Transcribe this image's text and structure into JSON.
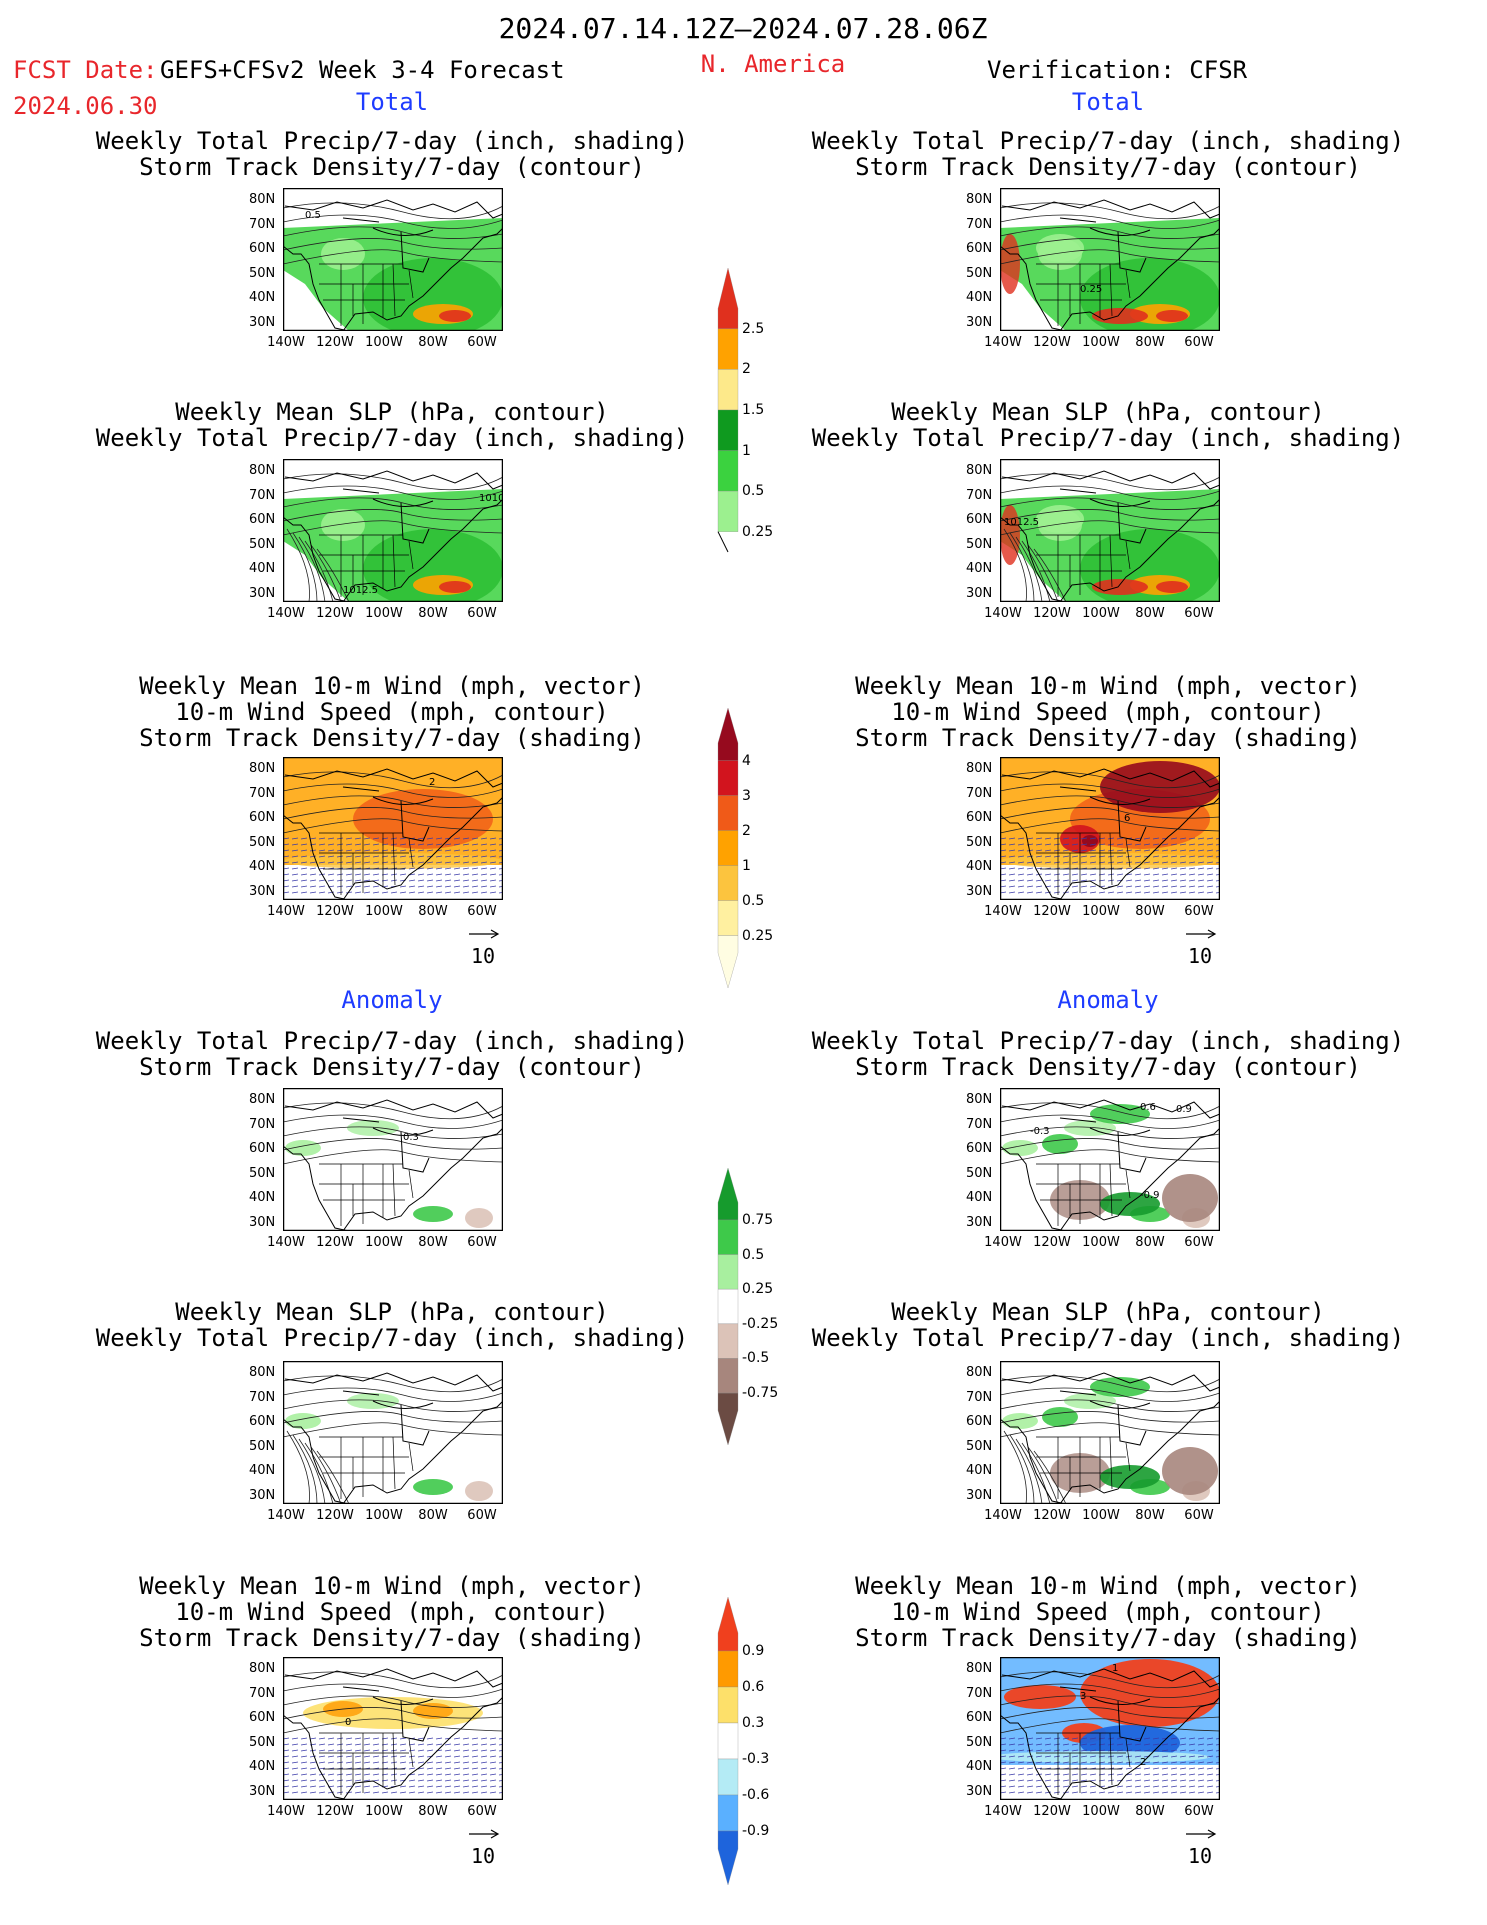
{
  "header": {
    "period": "2024.07.14.12Z–2024.07.28.06Z",
    "fcst_label": "FCST Date:",
    "fcst_model": "GEFS+CFSv2 Week 3-4 Forecast",
    "fcst_date": "2024.06.30",
    "region": "N. America",
    "verification": "Verification: CFSR"
  },
  "sections": {
    "total": "Total",
    "anomaly": "Anomaly"
  },
  "titles": {
    "precip_storm": [
      "Weekly Total Precip/7-day (inch, shading)",
      "Storm Track Density/7-day (contour)"
    ],
    "slp_precip": [
      "Weekly Mean SLP (hPa, contour)",
      "Weekly Total Precip/7-day (inch, shading)"
    ],
    "wind_storm": [
      "Weekly Mean 10-m Wind (mph, vector)",
      "10-m Wind Speed (mph, contour)",
      "Storm Track Density/7-day (shading)"
    ]
  },
  "axes": {
    "lat_labels": [
      "80N",
      "70N",
      "60N",
      "50N",
      "40N",
      "30N"
    ],
    "lon_labels": [
      "140W",
      "120W",
      "100W",
      "80W",
      "60W"
    ]
  },
  "ref_vector": "10",
  "map_annotations": {
    "fc_total_precip": "0.5",
    "fc_total_slp": "1012.5",
    "fc_total_slp_b": "1010",
    "fc_total_wind": "2",
    "ob_total_precip": "0.25",
    "ob_total_slp": "1012.5",
    "ob_total_wind": "6",
    "fc_anom_precip": "0.3",
    "ob_anom_precip_a": "0.6",
    "ob_anom_precip_b": "0.9",
    "ob_anom_precip_c": "-0.3",
    "ob_anom_precip_d": "-0.9",
    "fc_anom_wind": "0",
    "ob_anom_wind_a": "1",
    "ob_anom_wind_b": "3",
    "ob_anom_wind_c": "2"
  },
  "colorbars": {
    "precip_total": {
      "labels": [
        "2.5",
        "2",
        "1.5",
        "1",
        "0.5",
        "0.25"
      ],
      "colors": [
        "#e0301e",
        "#ffa200",
        "#fde98a",
        "#0f9a1f",
        "#3bd23f",
        "#9cf08f"
      ]
    },
    "storm_total": {
      "labels": [
        "4",
        "3",
        "2",
        "1",
        "0.5",
        "0.25"
      ],
      "colors": [
        "#960a1e",
        "#d2141e",
        "#f05a18",
        "#ffa200",
        "#fcc43e",
        "#fff0a0",
        "#fffde2"
      ]
    },
    "precip_anom": {
      "labels": [
        "0.75",
        "0.5",
        "0.25",
        "-0.25",
        "-0.5",
        "-0.75"
      ],
      "colors": [
        "#169b2d",
        "#3ec94a",
        "#a8ef9f",
        "#ffffff",
        "#dcc3b8",
        "#a7867d",
        "#6b4b43"
      ]
    },
    "storm_anom": {
      "labels": [
        "0.9",
        "0.6",
        "0.3",
        "-0.3",
        "-0.6",
        "-0.9"
      ],
      "colors": [
        "#f0401e",
        "#ff9a00",
        "#fde06a",
        "#ffffff",
        "#b4ebf5",
        "#5ab0ff",
        "#1e64dc"
      ]
    }
  },
  "chart_data": [
    {
      "type": "heatmap",
      "title": "Weekly Total Precip/7-day (inch, shading) / Storm Track Density/7-day (contour)",
      "section": "Total",
      "source": "FCST",
      "levels": [
        0.25,
        0.5,
        1,
        1.5,
        2,
        2.5
      ]
    },
    {
      "type": "heatmap",
      "title": "Weekly Total Precip/7-day (inch, shading) / Storm Track Density/7-day (contour)",
      "section": "Total",
      "source": "Verification: CFSR",
      "levels": [
        0.25,
        0.5,
        1,
        1.5,
        2,
        2.5
      ]
    },
    {
      "type": "heatmap",
      "title": "Weekly Mean SLP (hPa, contour) / Weekly Total Precip/7-day (inch, shading)",
      "section": "Total",
      "source": "FCST",
      "levels": [
        0.25,
        0.5,
        1,
        1.5,
        2,
        2.5
      ]
    },
    {
      "type": "heatmap",
      "title": "Weekly Mean SLP (hPa, contour) / Weekly Total Precip/7-day (inch, shading)",
      "section": "Total",
      "source": "Verification: CFSR",
      "levels": [
        0.25,
        0.5,
        1,
        1.5,
        2,
        2.5
      ]
    },
    {
      "type": "heatmap",
      "title": "Weekly Mean 10-m Wind (mph, vector) / 10-m Wind Speed (mph, contour) / Storm Track Density/7-day (shading)",
      "section": "Total",
      "source": "FCST",
      "levels": [
        0.25,
        0.5,
        1,
        2,
        3,
        4
      ]
    },
    {
      "type": "heatmap",
      "title": "Weekly Mean 10-m Wind (mph, vector) / 10-m Wind Speed (mph, contour) / Storm Track Density/7-day (shading)",
      "section": "Total",
      "source": "Verification: CFSR",
      "levels": [
        0.25,
        0.5,
        1,
        2,
        3,
        4
      ]
    },
    {
      "type": "heatmap",
      "title": "Weekly Total Precip/7-day (inch, shading) / Storm Track Density/7-day (contour)",
      "section": "Anomaly",
      "source": "FCST",
      "levels": [
        -0.75,
        -0.5,
        -0.25,
        0.25,
        0.5,
        0.75
      ]
    },
    {
      "type": "heatmap",
      "title": "Weekly Total Precip/7-day (inch, shading) / Storm Track Density/7-day (contour)",
      "section": "Anomaly",
      "source": "Verification: CFSR",
      "levels": [
        -0.75,
        -0.5,
        -0.25,
        0.25,
        0.5,
        0.75
      ]
    },
    {
      "type": "heatmap",
      "title": "Weekly Mean SLP (hPa, contour) / Weekly Total Precip/7-day (inch, shading)",
      "section": "Anomaly",
      "source": "FCST",
      "levels": [
        -0.75,
        -0.5,
        -0.25,
        0.25,
        0.5,
        0.75
      ]
    },
    {
      "type": "heatmap",
      "title": "Weekly Mean SLP (hPa, contour) / Weekly Total Precip/7-day (inch, shading)",
      "section": "Anomaly",
      "source": "Verification: CFSR",
      "levels": [
        -0.75,
        -0.5,
        -0.25,
        0.25,
        0.5,
        0.75
      ]
    },
    {
      "type": "heatmap",
      "title": "Weekly Mean 10-m Wind (mph, vector) / 10-m Wind Speed (mph, contour) / Storm Track Density/7-day (shading)",
      "section": "Anomaly",
      "source": "FCST",
      "levels": [
        -0.9,
        -0.6,
        -0.3,
        0.3,
        0.6,
        0.9
      ]
    },
    {
      "type": "heatmap",
      "title": "Weekly Mean 10-m Wind (mph, vector) / 10-m Wind Speed (mph, contour) / Storm Track Density/7-day (shading)",
      "section": "Anomaly",
      "source": "Verification: CFSR",
      "levels": [
        -0.9,
        -0.6,
        -0.3,
        0.3,
        0.6,
        0.9
      ]
    }
  ]
}
